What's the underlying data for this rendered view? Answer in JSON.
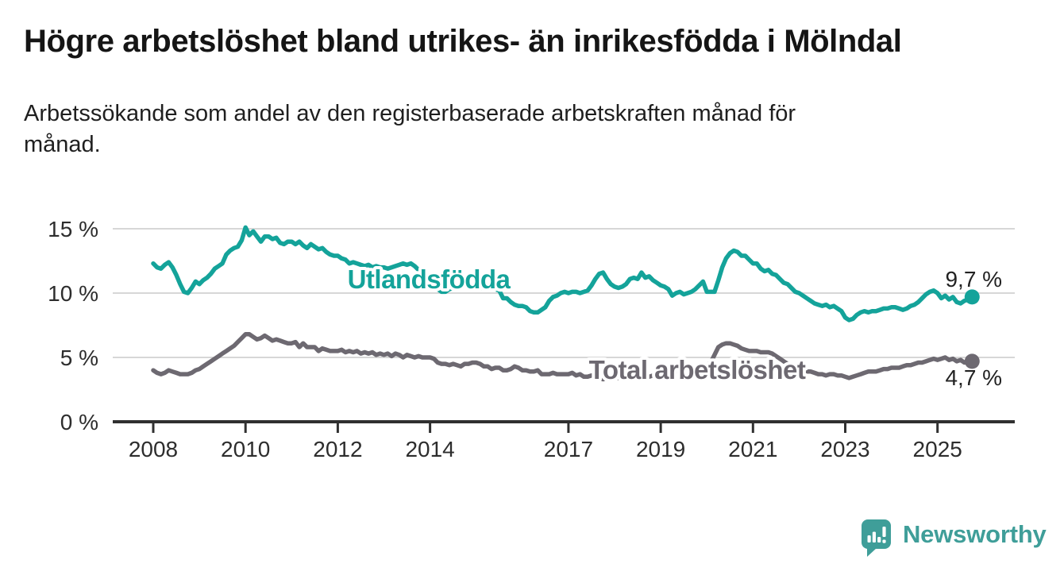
{
  "header": {
    "title": "Högre arbetslöshet bland utrikes- än inrikesfödda i Mölndal",
    "subtitle_lines": [
      "Arbetssökande som andel av den registerbaserade arbetskraften månad för",
      "månad."
    ]
  },
  "chart_data": {
    "type": "line",
    "unit": "%",
    "frequency": "monthly",
    "x_start": "2008-01",
    "x_end": "2025-10",
    "ylim": [
      0,
      16
    ],
    "grid": "horizontal",
    "legend_position": "inline-labels",
    "yticks": [
      {
        "value": 0,
        "label": "0 %"
      },
      {
        "value": 5,
        "label": "5 %"
      },
      {
        "value": 10,
        "label": "10 %"
      },
      {
        "value": 15,
        "label": "15 %"
      }
    ],
    "xticks": [
      {
        "year": 2008,
        "label": "2008"
      },
      {
        "year": 2010,
        "label": "2010"
      },
      {
        "year": 2012,
        "label": "2012"
      },
      {
        "year": 2014,
        "label": "2014"
      },
      {
        "year": 2017,
        "label": "2017"
      },
      {
        "year": 2019,
        "label": "2019"
      },
      {
        "year": 2021,
        "label": "2021"
      },
      {
        "year": 2023,
        "label": "2023"
      },
      {
        "year": 2025,
        "label": "2025"
      }
    ],
    "series": [
      {
        "name": "Utlandsfödda",
        "color": "#14a39a",
        "end_label": "9,7 %",
        "end_value": 9.7,
        "values": [
          12.3,
          12.0,
          11.9,
          12.2,
          12.4,
          12.0,
          11.4,
          10.7,
          10.1,
          10.0,
          10.4,
          10.9,
          10.7,
          11.0,
          11.2,
          11.5,
          11.9,
          12.1,
          12.3,
          13.0,
          13.3,
          13.5,
          13.6,
          14.1,
          15.1,
          14.5,
          14.8,
          14.4,
          14.0,
          14.4,
          14.4,
          14.2,
          14.3,
          13.9,
          13.8,
          14.0,
          14.0,
          13.8,
          14.0,
          13.7,
          13.5,
          13.8,
          13.6,
          13.4,
          13.5,
          13.2,
          13.0,
          12.9,
          12.9,
          12.7,
          12.6,
          12.3,
          12.4,
          12.3,
          12.2,
          12.1,
          12.2,
          12.0,
          12.1,
          12.0,
          12.0,
          11.9,
          12.0,
          12.1,
          12.2,
          12.3,
          12.2,
          12.3,
          12.1,
          11.8,
          11.5,
          11.2,
          10.9,
          10.6,
          10.3,
          10.1,
          10.1,
          10.3,
          10.4,
          10.5,
          10.5,
          10.6,
          10.5,
          10.4,
          10.5,
          10.4,
          10.4,
          10.4,
          10.3,
          10.3,
          10.2,
          9.6,
          9.6,
          9.3,
          9.1,
          9.0,
          9.0,
          8.9,
          8.6,
          8.5,
          8.5,
          8.7,
          8.9,
          9.4,
          9.7,
          9.8,
          10.0,
          10.1,
          10.0,
          10.1,
          10.1,
          10.0,
          10.1,
          10.2,
          10.6,
          11.1,
          11.5,
          11.6,
          11.1,
          10.7,
          10.5,
          10.4,
          10.5,
          10.7,
          11.1,
          11.2,
          11.1,
          11.6,
          11.2,
          11.3,
          11.0,
          10.8,
          10.6,
          10.5,
          10.3,
          9.8,
          10.0,
          10.1,
          9.9,
          10.0,
          10.1,
          10.3,
          10.6,
          10.9,
          10.1,
          10.1,
          10.1,
          11.0,
          12.0,
          12.7,
          13.1,
          13.3,
          13.2,
          12.9,
          12.9,
          12.6,
          12.3,
          12.3,
          11.9,
          11.7,
          11.8,
          11.5,
          11.4,
          11.1,
          10.8,
          10.7,
          10.4,
          10.1,
          10.0,
          9.8,
          9.6,
          9.4,
          9.2,
          9.1,
          9.0,
          9.1,
          8.9,
          9.0,
          8.8,
          8.6,
          8.1,
          7.9,
          8.0,
          8.3,
          8.5,
          8.6,
          8.5,
          8.6,
          8.6,
          8.7,
          8.8,
          8.8,
          8.9,
          8.9,
          8.8,
          8.7,
          8.8,
          9.0,
          9.1,
          9.3,
          9.6,
          9.9,
          10.1,
          10.2,
          10.0,
          9.6,
          9.8,
          9.5,
          9.7,
          9.3,
          9.2,
          9.4,
          9.5,
          9.7
        ]
      },
      {
        "name": "Total arbetslöshet",
        "color": "#6d6971",
        "end_label": "4,7 %",
        "end_value": 4.7,
        "values": [
          4.0,
          3.8,
          3.7,
          3.8,
          4.0,
          3.9,
          3.8,
          3.7,
          3.7,
          3.7,
          3.8,
          4.0,
          4.1,
          4.3,
          4.5,
          4.7,
          4.9,
          5.1,
          5.3,
          5.5,
          5.7,
          5.9,
          6.2,
          6.5,
          6.8,
          6.8,
          6.6,
          6.4,
          6.5,
          6.7,
          6.5,
          6.3,
          6.4,
          6.3,
          6.2,
          6.1,
          6.1,
          6.2,
          5.8,
          6.1,
          5.8,
          5.8,
          5.8,
          5.5,
          5.7,
          5.6,
          5.5,
          5.5,
          5.5,
          5.6,
          5.4,
          5.5,
          5.4,
          5.5,
          5.3,
          5.4,
          5.3,
          5.4,
          5.2,
          5.3,
          5.2,
          5.3,
          5.1,
          5.3,
          5.2,
          5.0,
          5.2,
          5.1,
          5.0,
          5.1,
          5.0,
          5.0,
          5.0,
          4.9,
          4.6,
          4.5,
          4.5,
          4.4,
          4.5,
          4.4,
          4.3,
          4.5,
          4.5,
          4.6,
          4.6,
          4.5,
          4.3,
          4.3,
          4.1,
          4.2,
          4.2,
          4.0,
          4.0,
          4.1,
          4.3,
          4.2,
          4.0,
          4.0,
          3.9,
          3.9,
          4.0,
          3.7,
          3.7,
          3.7,
          3.8,
          3.7,
          3.7,
          3.7,
          3.7,
          3.8,
          3.6,
          3.7,
          3.5,
          3.5,
          3.6,
          3.6,
          3.4,
          3.3,
          3.4,
          3.5,
          3.5,
          3.4,
          3.3,
          3.4,
          3.5,
          3.5,
          3.4,
          3.5,
          3.6,
          3.5,
          3.6,
          3.7,
          3.7,
          3.8,
          3.8,
          3.9,
          3.9,
          3.9,
          4.0,
          4.0,
          4.1,
          4.1,
          4.2,
          4.3,
          4.4,
          4.6,
          5.2,
          5.8,
          6.0,
          6.1,
          6.1,
          6.0,
          5.9,
          5.7,
          5.6,
          5.5,
          5.5,
          5.5,
          5.4,
          5.4,
          5.4,
          5.3,
          5.1,
          4.9,
          4.7,
          4.5,
          4.3,
          4.2,
          4.1,
          4.0,
          3.9,
          3.9,
          3.8,
          3.7,
          3.7,
          3.6,
          3.7,
          3.7,
          3.6,
          3.6,
          3.5,
          3.4,
          3.5,
          3.6,
          3.7,
          3.8,
          3.9,
          3.9,
          3.9,
          4.0,
          4.1,
          4.1,
          4.2,
          4.2,
          4.2,
          4.3,
          4.4,
          4.4,
          4.5,
          4.6,
          4.6,
          4.7,
          4.8,
          4.9,
          4.8,
          4.9,
          5.0,
          4.8,
          4.9,
          4.7,
          4.8,
          4.6,
          4.7,
          4.7
        ]
      }
    ]
  },
  "footer": {
    "brand": "Newsworthy"
  },
  "colors": {
    "accent_teal": "#14a39a",
    "series_gray": "#6d6971",
    "grid": "#d7d7d7",
    "axis": "#303030",
    "text_dark": "#1f1f1f",
    "logo_teal": "#3f9e99"
  }
}
